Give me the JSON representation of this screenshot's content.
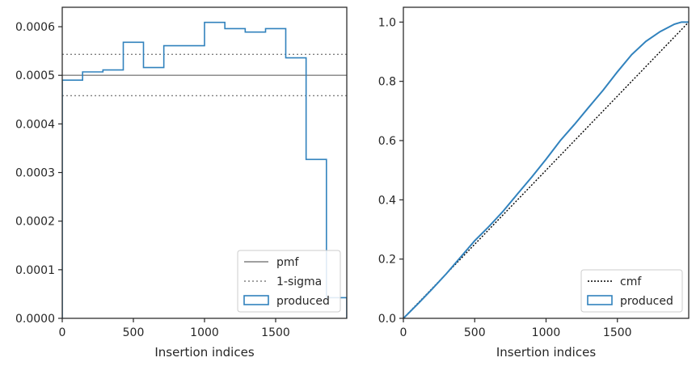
{
  "chart_data": [
    {
      "type": "histogram-step",
      "title": "",
      "xlabel": "Insertion indices",
      "ylabel": "",
      "xlim": [
        0,
        2000
      ],
      "ylim": [
        0,
        0.00064
      ],
      "xticks": [
        0,
        500,
        1000,
        1500
      ],
      "xtick_labels": [
        "0",
        "500",
        "1000",
        "1500"
      ],
      "yticks": [
        0,
        0.0001,
        0.0002,
        0.0003,
        0.0004,
        0.0005,
        0.0006
      ],
      "ytick_labels": [
        "0.0000",
        "0.0001",
        "0.0002",
        "0.0003",
        "0.0004",
        "0.0005",
        "0.0006"
      ],
      "grid": false,
      "legend_position": "lower-right",
      "legend": [
        "pmf",
        "1-sigma",
        "produced"
      ],
      "pmf_value": 0.0005,
      "sigma_band": [
        0.000458,
        0.000543
      ],
      "bin_edges": [
        0,
        143,
        286,
        429,
        571,
        714,
        857,
        1000,
        1143,
        1286,
        1429,
        1571,
        1714,
        1857,
        2000
      ],
      "values": [
        0.00049,
        0.000507,
        0.000511,
        0.000568,
        0.000516,
        0.000561,
        0.000561,
        0.000609,
        0.000596,
        0.000589,
        0.000596,
        0.000536,
        0.000327,
        4.25e-05
      ],
      "colors": {
        "produced": "#3182bd",
        "pmf": "#808080",
        "sigma": "#808080"
      }
    },
    {
      "type": "line",
      "title": "",
      "xlabel": "Insertion indices",
      "ylabel": "",
      "xlim": [
        0,
        2000
      ],
      "ylim": [
        0,
        1.05
      ],
      "xticks": [
        0,
        500,
        1000,
        1500
      ],
      "xtick_labels": [
        "0",
        "500",
        "1000",
        "1500"
      ],
      "yticks": [
        0,
        0.2,
        0.4,
        0.6,
        0.8,
        1.0
      ],
      "ytick_labels": [
        "0.0",
        "0.2",
        "0.4",
        "0.6",
        "0.8",
        "1.0"
      ],
      "grid": false,
      "legend_position": "lower-right",
      "legend": [
        "cmf",
        "produced"
      ],
      "series": [
        {
          "name": "cmf",
          "style": "dotted",
          "x": [
            0,
            2000
          ],
          "values": [
            0,
            1.0
          ]
        },
        {
          "name": "produced",
          "style": "step",
          "x": [
            0,
            100,
            200,
            300,
            400,
            500,
            600,
            700,
            800,
            900,
            1000,
            1100,
            1200,
            1300,
            1400,
            1500,
            1600,
            1700,
            1800,
            1900,
            1950,
            2000
          ],
          "values": [
            0,
            0.048,
            0.098,
            0.15,
            0.206,
            0.262,
            0.31,
            0.362,
            0.42,
            0.477,
            0.537,
            0.6,
            0.655,
            0.713,
            0.77,
            0.832,
            0.89,
            0.935,
            0.968,
            0.993,
            1.0,
            1.0
          ]
        }
      ],
      "colors": {
        "produced": "#3182bd",
        "cmf": "#000000"
      }
    }
  ]
}
